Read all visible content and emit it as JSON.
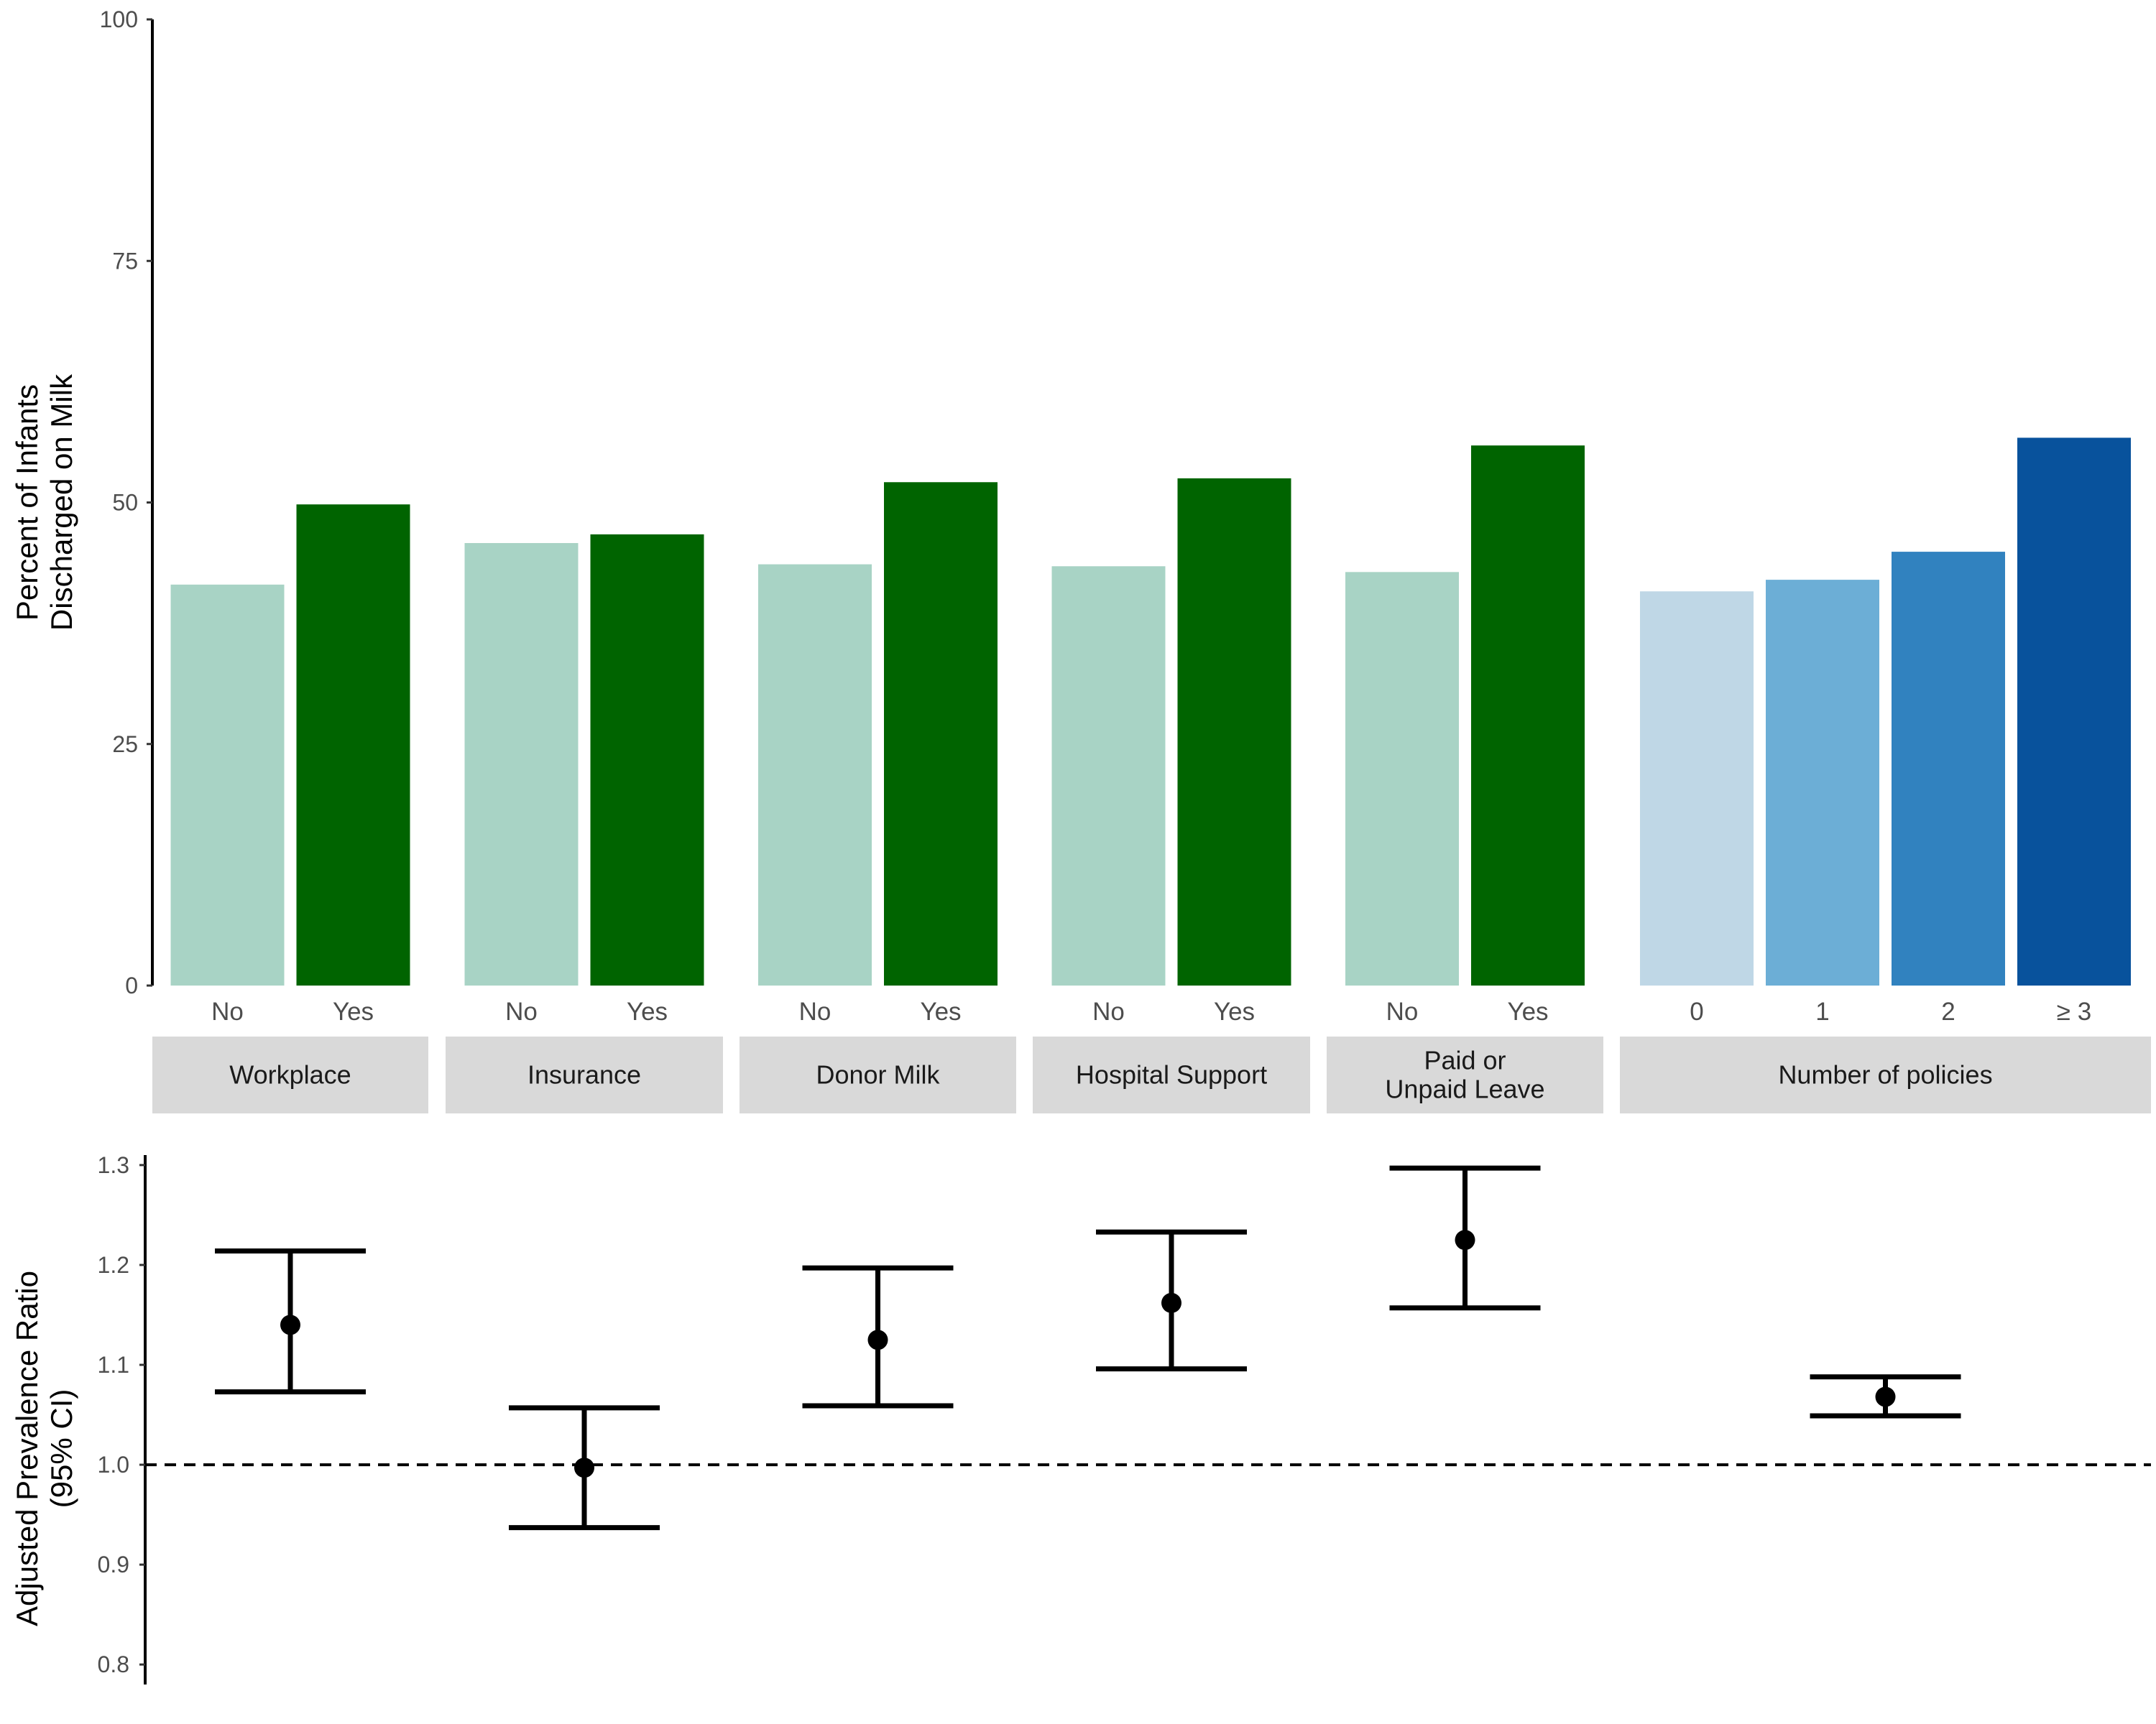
{
  "chart_data": [
    {
      "type": "bar",
      "ylabel_lines": [
        "Percent of Infants",
        "Discharged on Milk"
      ],
      "ylim": [
        0,
        100
      ],
      "yticks": [
        0,
        25,
        50,
        75,
        100
      ],
      "grid": false,
      "groups": [
        {
          "label_lines": [
            "Workplace"
          ],
          "bars": [
            {
              "category": "No",
              "value": 41.5,
              "color": "#a8d3c5"
            },
            {
              "category": "Yes",
              "value": 49.8,
              "color": "#006400"
            }
          ]
        },
        {
          "label_lines": [
            "Insurance"
          ],
          "bars": [
            {
              "category": "No",
              "value": 45.8,
              "color": "#a8d3c5"
            },
            {
              "category": "Yes",
              "value": 46.7,
              "color": "#006400"
            }
          ]
        },
        {
          "label_lines": [
            "Donor Milk"
          ],
          "bars": [
            {
              "category": "No",
              "value": 43.6,
              "color": "#a8d3c5"
            },
            {
              "category": "Yes",
              "value": 52.1,
              "color": "#006400"
            }
          ]
        },
        {
          "label_lines": [
            "Hospital Support"
          ],
          "bars": [
            {
              "category": "No",
              "value": 43.4,
              "color": "#a8d3c5"
            },
            {
              "category": "Yes",
              "value": 52.5,
              "color": "#006400"
            }
          ]
        },
        {
          "label_lines": [
            "Paid or",
            "Unpaid Leave"
          ],
          "bars": [
            {
              "category": "No",
              "value": 42.8,
              "color": "#a8d3c5"
            },
            {
              "category": "Yes",
              "value": 55.9,
              "color": "#006400"
            }
          ]
        },
        {
          "label_lines": [
            "Number of policies"
          ],
          "bars": [
            {
              "category": "0",
              "value": 40.8,
              "color": "#bfd7e6"
            },
            {
              "category": "1",
              "value": 42.0,
              "color": "#6caed6"
            },
            {
              "category": "2",
              "value": 44.9,
              "color": "#3182bf"
            },
            {
              "category": "≥ 3",
              "value": 56.7,
              "color": "#08529c"
            }
          ]
        }
      ]
    },
    {
      "type": "scatter",
      "ylabel_lines": [
        "Adjusted Prevalence Ratio",
        "(95% CI)"
      ],
      "ylim": [
        0.78,
        1.31
      ],
      "yticks": [
        "0.8",
        "0.9",
        "1.0",
        "1.1",
        "1.2",
        "1.3"
      ],
      "reference_line": 1.0,
      "grid": false,
      "points": [
        {
          "group": "Workplace",
          "estimate": 1.14,
          "ci_low": 1.073,
          "ci_high": 1.214
        },
        {
          "group": "Insurance",
          "estimate": 0.997,
          "ci_low": 0.937,
          "ci_high": 1.057
        },
        {
          "group": "Donor Milk",
          "estimate": 1.125,
          "ci_low": 1.059,
          "ci_high": 1.197
        },
        {
          "group": "Hospital Support",
          "estimate": 1.162,
          "ci_low": 1.096,
          "ci_high": 1.233
        },
        {
          "group": "Paid or Unpaid Leave",
          "estimate": 1.225,
          "ci_low": 1.157,
          "ci_high": 1.297
        },
        {
          "group": "Number of policies",
          "estimate": 1.068,
          "ci_low": 1.049,
          "ci_high": 1.088
        }
      ]
    }
  ]
}
